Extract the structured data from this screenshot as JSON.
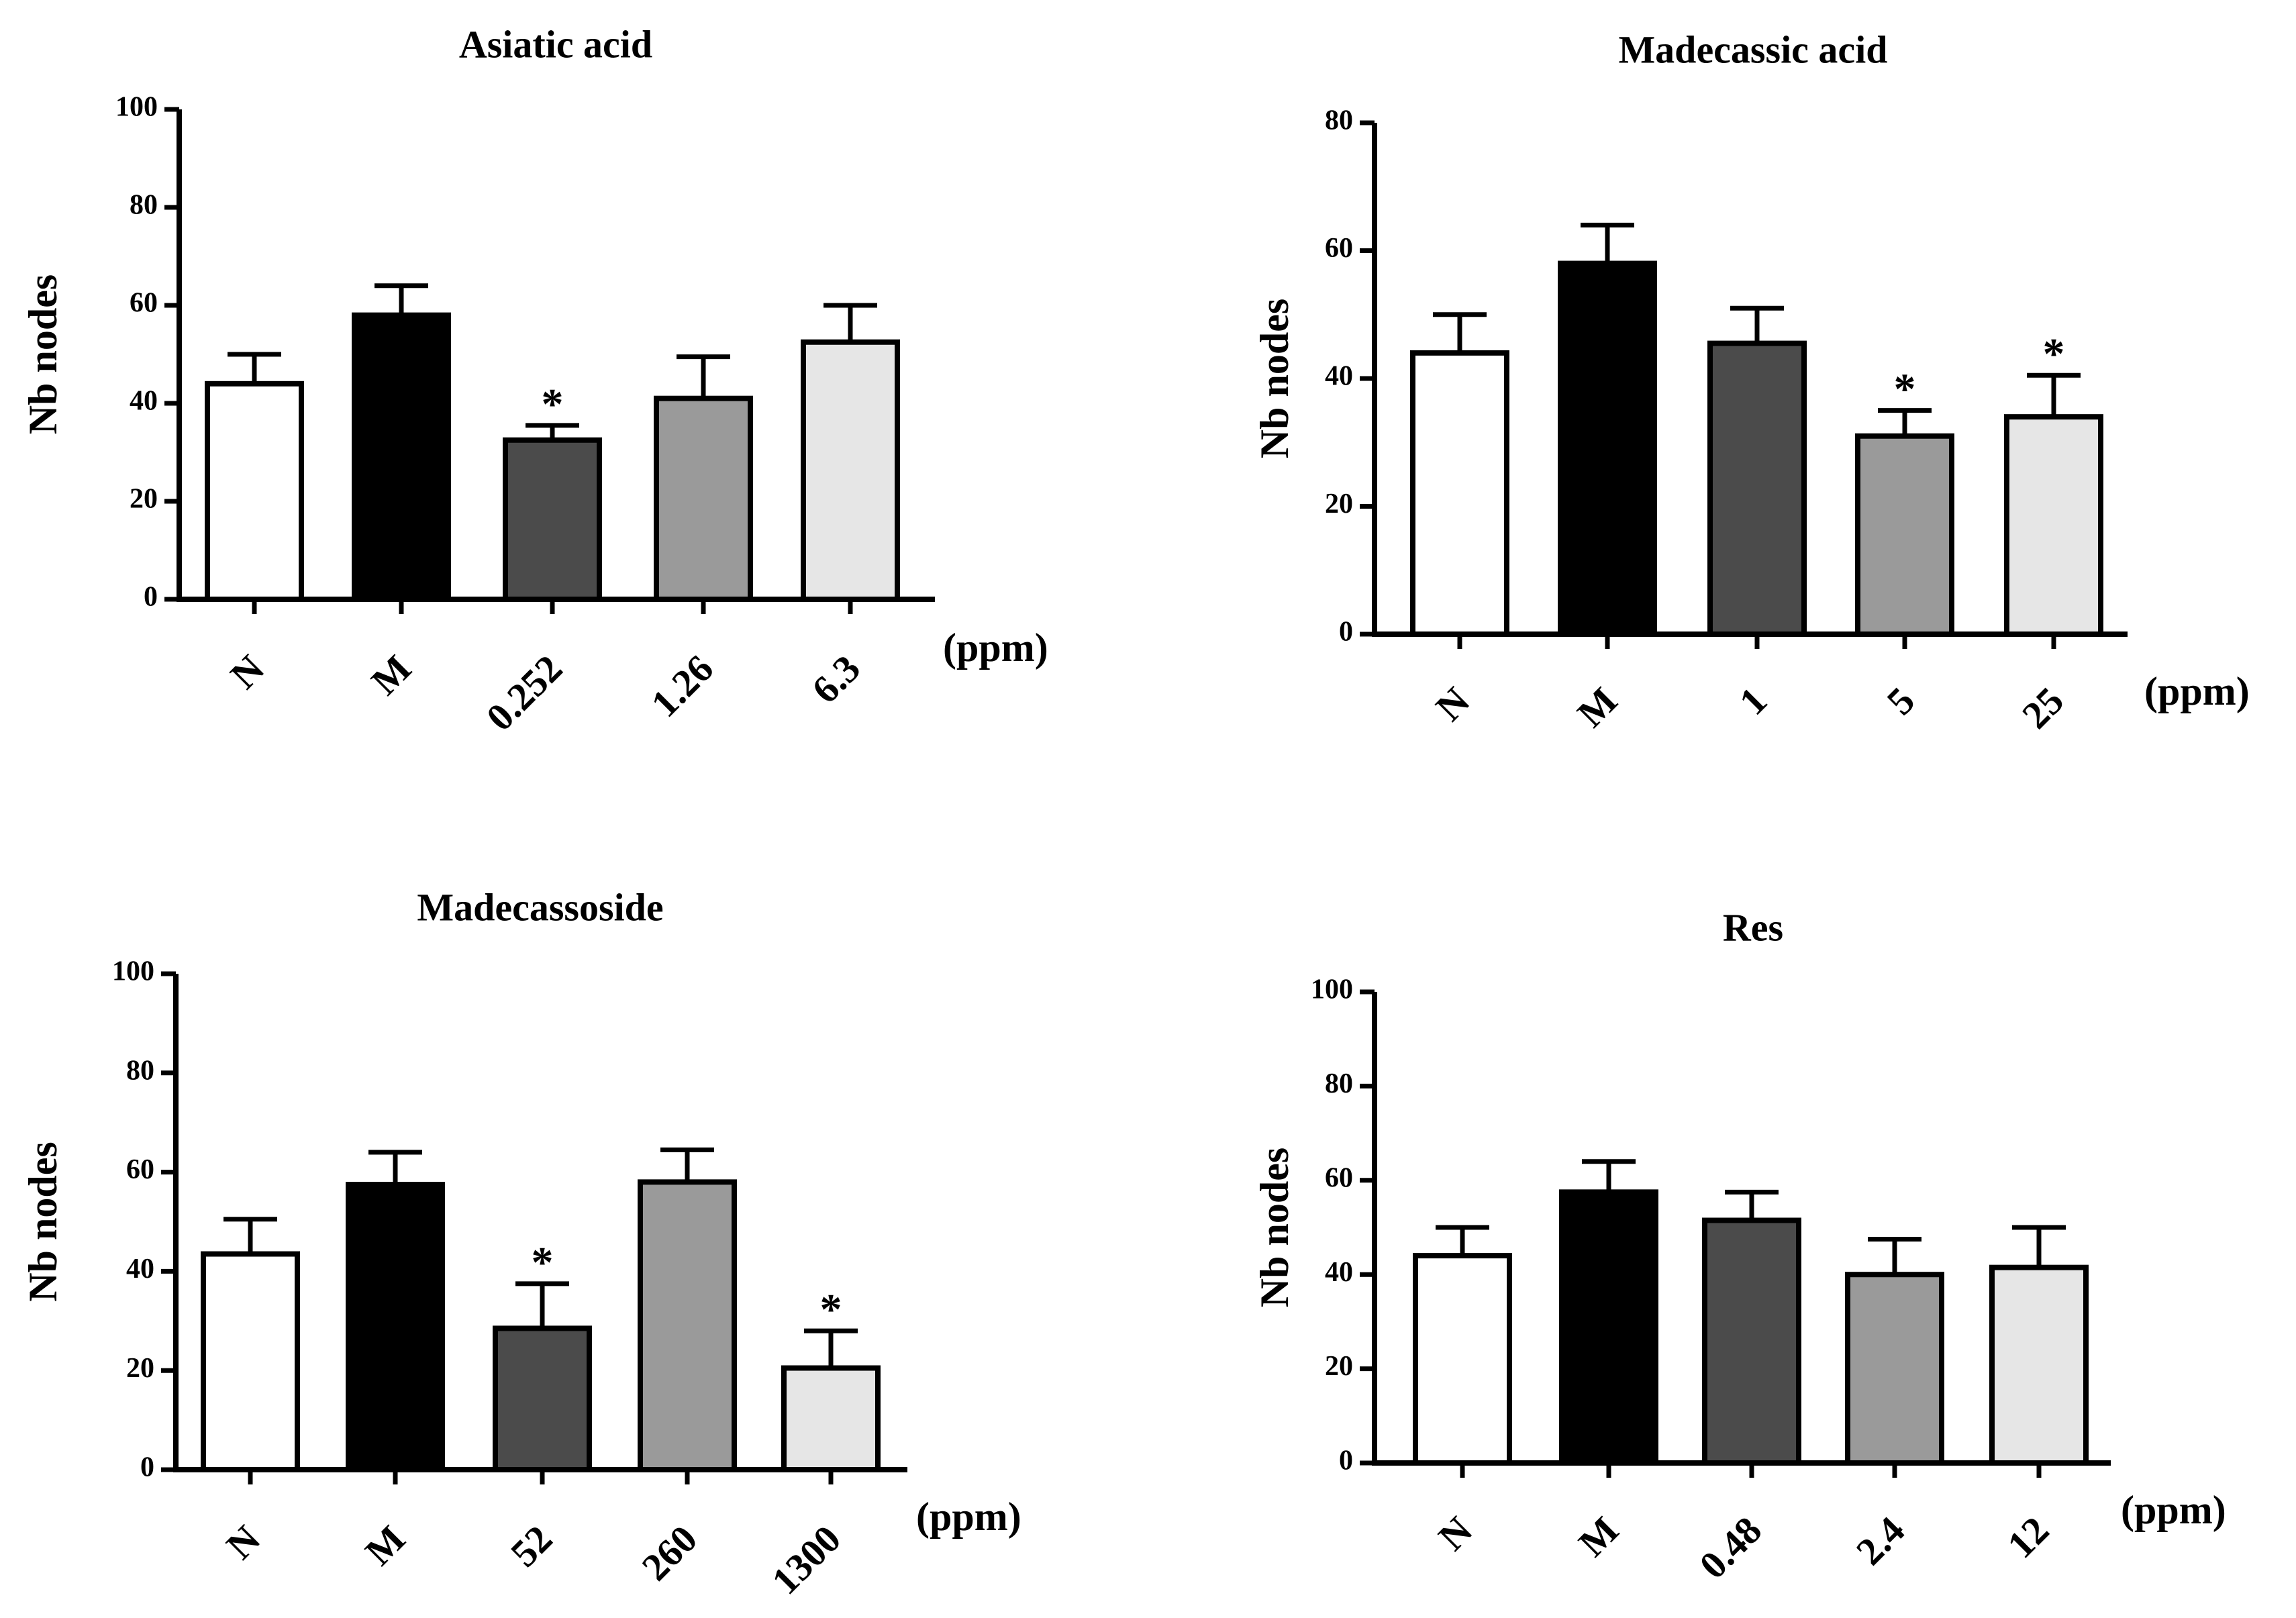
{
  "figure": {
    "unit_label": "(ppm)",
    "significance_marker": "*",
    "bar_colors": [
      "#ffffff",
      "#000000",
      "#4b4b4b",
      "#9a9a9a",
      "#e6e6e6"
    ],
    "axis_color": "#000000"
  },
  "chart_data": [
    {
      "type": "bar",
      "title": "Asiatic acid",
      "ylabel": "Nb nodes",
      "xlabel": "(ppm)",
      "ylim": [
        0,
        100
      ],
      "yticks": [
        0,
        20,
        40,
        60,
        80,
        100
      ],
      "categories": [
        "N",
        "M",
        "0.252",
        "1.26",
        "6.3"
      ],
      "values": [
        44,
        58,
        32.5,
        41,
        52.5
      ],
      "errors": [
        6,
        6,
        3,
        8.5,
        7.5
      ],
      "significant": [
        false,
        false,
        true,
        false,
        false
      ]
    },
    {
      "type": "bar",
      "title": "Madecassic acid",
      "ylabel": "Nb nodes",
      "xlabel": "(ppm)",
      "ylim": [
        0,
        80
      ],
      "yticks": [
        0,
        20,
        40,
        60,
        80
      ],
      "categories": [
        "N",
        "M",
        "1",
        "5",
        "25"
      ],
      "values": [
        44,
        58,
        45.5,
        31,
        34
      ],
      "errors": [
        6,
        6,
        5.5,
        4,
        6.5
      ],
      "significant": [
        false,
        false,
        false,
        true,
        true
      ]
    },
    {
      "type": "bar",
      "title": "Madecassoside",
      "ylabel": "Nb nodes",
      "xlabel": "(ppm)",
      "ylim": [
        0,
        100
      ],
      "yticks": [
        0,
        20,
        40,
        60,
        80,
        100
      ],
      "categories": [
        "N",
        "M",
        "52",
        "260",
        "1300"
      ],
      "values": [
        43.5,
        57.5,
        28.5,
        58,
        20.5
      ],
      "errors": [
        7,
        6.5,
        9,
        6.5,
        7.5
      ],
      "significant": [
        false,
        false,
        true,
        false,
        true
      ]
    },
    {
      "type": "bar",
      "title": "Res",
      "ylabel": "Nb nodes",
      "xlabel": "(ppm)",
      "ylim": [
        0,
        100
      ],
      "yticks": [
        0,
        20,
        40,
        60,
        80,
        100
      ],
      "categories": [
        "N",
        "M",
        "0.48",
        "2.4",
        "12"
      ],
      "values": [
        44,
        57.5,
        51.5,
        40,
        41.5
      ],
      "errors": [
        6,
        6.5,
        6,
        7.5,
        8.5
      ],
      "significant": [
        false,
        false,
        false,
        false,
        false
      ]
    }
  ]
}
